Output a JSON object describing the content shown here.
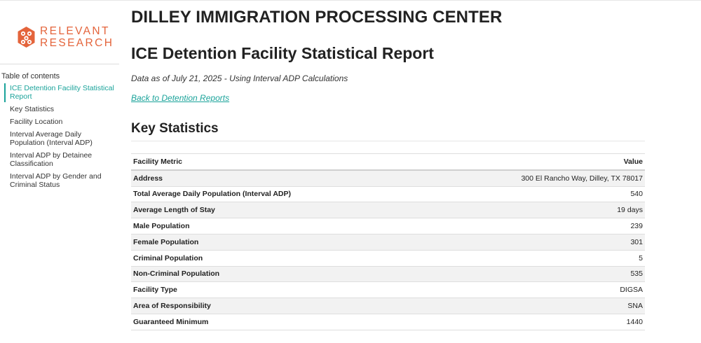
{
  "colors": {
    "brand": "#e4643b",
    "accent": "#1aa39a"
  },
  "logo": {
    "line1": "RELEVANT",
    "line2": "RESEARCH",
    "icon": "hexagon-network-icon"
  },
  "toc": {
    "title": "Table of contents",
    "items": [
      {
        "label": "ICE Detention Facility Statistical Report",
        "active": true
      },
      {
        "label": "Key Statistics"
      },
      {
        "label": "Facility Location"
      },
      {
        "label": "Interval Average Daily Population (Interval ADP)"
      },
      {
        "label": "Interval ADP by Detainee Classification"
      },
      {
        "label": "Interval ADP by Gender and Criminal Status"
      }
    ]
  },
  "page": {
    "facility_title": "DILLEY IMMIGRATION PROCESSING CENTER",
    "report_title": "ICE Detention Facility Statistical Report",
    "data_as_of": "Data as of July 21, 2025 - Using Interval ADP Calculations",
    "back_link": "Back to Detention Reports"
  },
  "key_statistics": {
    "heading": "Key Statistics",
    "columns": [
      "Facility Metric",
      "Value"
    ],
    "rows": [
      {
        "metric": "Address",
        "value": "300 El Rancho Way, Dilley, TX 78017"
      },
      {
        "metric": "Total Average Daily Population (Interval ADP)",
        "value": "540"
      },
      {
        "metric": "Average Length of Stay",
        "value": "19 days"
      },
      {
        "metric": "Male Population",
        "value": "239"
      },
      {
        "metric": "Female Population",
        "value": "301"
      },
      {
        "metric": "Criminal Population",
        "value": "5"
      },
      {
        "metric": "Non-Criminal Population",
        "value": "535"
      },
      {
        "metric": "Facility Type",
        "value": "DIGSA"
      },
      {
        "metric": "Area of Responsibility",
        "value": "SNA"
      },
      {
        "metric": "Guaranteed Minimum",
        "value": "1440"
      }
    ]
  }
}
